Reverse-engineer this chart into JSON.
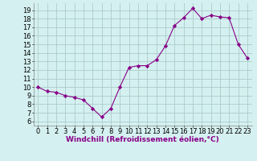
{
  "x": [
    0,
    1,
    2,
    3,
    4,
    5,
    6,
    7,
    8,
    9,
    10,
    11,
    12,
    13,
    14,
    15,
    16,
    17,
    18,
    19,
    20,
    21,
    22,
    23
  ],
  "y": [
    10.0,
    9.5,
    9.4,
    9.0,
    8.8,
    8.5,
    7.5,
    6.5,
    7.5,
    10.0,
    12.3,
    12.5,
    12.5,
    13.2,
    14.8,
    17.2,
    18.1,
    19.2,
    18.0,
    18.4,
    18.2,
    18.1,
    15.0,
    13.4
  ],
  "line_color": "#880088",
  "marker": "D",
  "marker_size": 2.2,
  "bg_color": "#d5f0f0",
  "grid_color": "#aacccc",
  "xlabel": "Windchill (Refroidissement éolien,°C)",
  "xlabel_fontsize": 6.5,
  "tick_fontsize": 6.0,
  "xlim": [
    -0.5,
    23.5
  ],
  "ylim": [
    5.5,
    19.8
  ],
  "yticks": [
    6,
    7,
    8,
    9,
    10,
    11,
    12,
    13,
    14,
    15,
    16,
    17,
    18,
    19
  ],
  "xticks": [
    0,
    1,
    2,
    3,
    4,
    5,
    6,
    7,
    8,
    9,
    10,
    11,
    12,
    13,
    14,
    15,
    16,
    17,
    18,
    19,
    20,
    21,
    22,
    23
  ]
}
